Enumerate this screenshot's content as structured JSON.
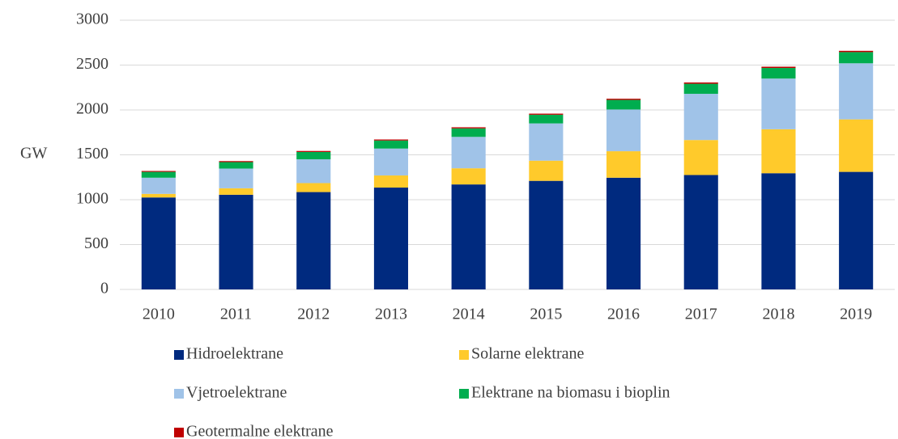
{
  "chart_data": {
    "type": "stacked_bar",
    "y_label": "GW",
    "categories": [
      "2010",
      "2011",
      "2012",
      "2013",
      "2014",
      "2015",
      "2016",
      "2017",
      "2018",
      "2019"
    ],
    "series": [
      {
        "name": "Hidroelektrane",
        "color": "#002a7f",
        "values": [
          1025,
          1055,
          1085,
          1135,
          1170,
          1210,
          1245,
          1275,
          1295,
          1310
        ]
      },
      {
        "name": "Solarne elektrane",
        "color": "#ffca2b",
        "values": [
          40,
          72,
          100,
          135,
          180,
          225,
          295,
          390,
          490,
          585
        ]
      },
      {
        "name": "Vjetroelektrane",
        "color": "#a0c3e8",
        "values": [
          180,
          220,
          265,
          300,
          350,
          415,
          465,
          515,
          565,
          625
        ]
      },
      {
        "name": "Elektrane na biomasu i bioplin",
        "color": "#00ad4f",
        "values": [
          65,
          72,
          82,
          90,
          95,
          97,
          107,
          112,
          118,
          125
        ]
      },
      {
        "name": "Geotermalne elektrane",
        "color": "#c00000",
        "values": [
          10,
          11,
          11,
          11,
          12,
          12,
          13,
          14,
          14,
          14
        ]
      }
    ],
    "ylim": [
      0,
      3000
    ],
    "yticks": [
      0,
      500,
      1000,
      1500,
      2000,
      2500,
      3000
    ],
    "grid": true,
    "legend": "bottom"
  }
}
